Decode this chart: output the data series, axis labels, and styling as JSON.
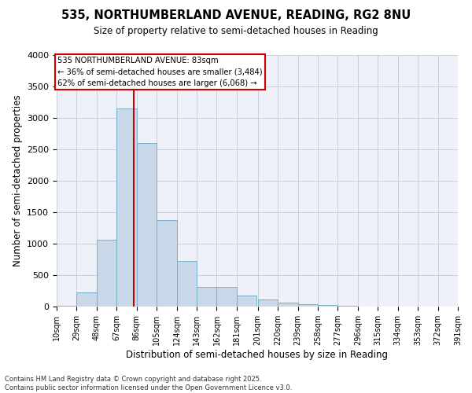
{
  "title_line1": "535, NORTHUMBERLAND AVENUE, READING, RG2 8NU",
  "title_line2": "Size of property relative to semi-detached houses in Reading",
  "xlabel": "Distribution of semi-detached houses by size in Reading",
  "ylabel": "Number of semi-detached properties",
  "property_size": 83,
  "property_label": "535 NORTHUMBERLAND AVENUE: 83sqm",
  "pct_smaller": 36,
  "pct_larger": 62,
  "n_smaller": 3484,
  "n_larger": 6068,
  "bar_color": "#c8d8e8",
  "bar_edge_color": "#7ab0cc",
  "vline_color": "#cc0000",
  "annotation_box_color": "#cc0000",
  "grid_color": "#c0ccd8",
  "bg_color": "#eef2f8",
  "bin_starts": [
    10,
    29,
    48,
    67,
    86,
    105,
    124,
    143,
    162,
    181,
    201,
    220,
    239,
    258,
    277,
    296,
    315,
    334,
    353,
    372
  ],
  "bin_width": 19,
  "bin_labels": [
    "10sqm",
    "29sqm",
    "48sqm",
    "67sqm",
    "86sqm",
    "105sqm",
    "124sqm",
    "143sqm",
    "162sqm",
    "181sqm",
    "201sqm",
    "220sqm",
    "239sqm",
    "258sqm",
    "277sqm",
    "296sqm",
    "315sqm",
    "334sqm",
    "353sqm",
    "372sqm",
    "391sqm"
  ],
  "counts": [
    15,
    220,
    1060,
    3150,
    2600,
    1380,
    730,
    310,
    310,
    175,
    115,
    60,
    40,
    20,
    10,
    5,
    2,
    1,
    0,
    0
  ],
  "ylim": [
    0,
    4000
  ],
  "yticks": [
    0,
    500,
    1000,
    1500,
    2000,
    2500,
    3000,
    3500,
    4000
  ],
  "footer": "Contains HM Land Registry data © Crown copyright and database right 2025.\nContains public sector information licensed under the Open Government Licence v3.0."
}
